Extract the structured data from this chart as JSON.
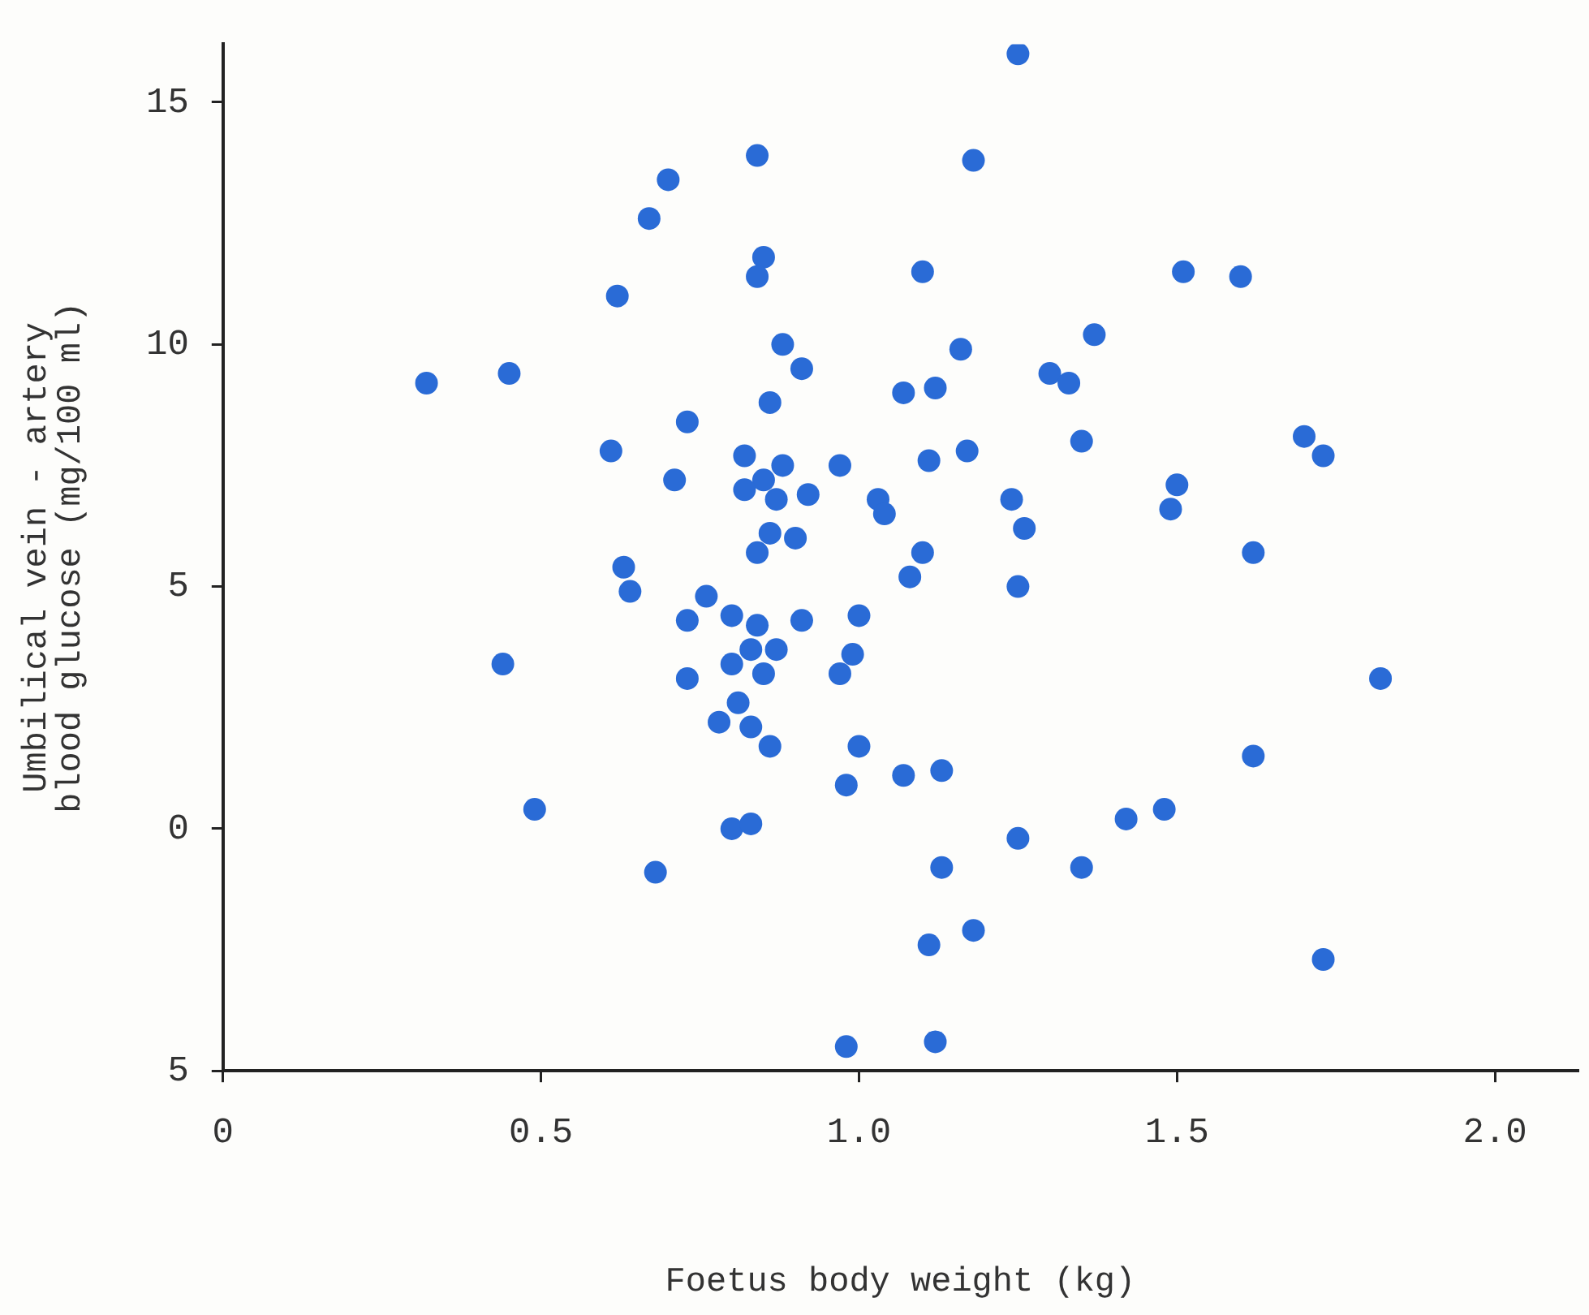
{
  "chart_data": {
    "type": "scatter",
    "xlabel": "Foetus body weight (kg)",
    "ylabel": "Umbilical vein - artery\nblood glucose (mg/100 ml)",
    "marker": "circle",
    "xlim": [
      0,
      2.13
    ],
    "ylim": [
      -5,
      16.2
    ],
    "xticks": [
      0,
      0.5,
      {
        "value": 1,
        "label": "1.0"
      },
      {
        "value": 1.5,
        "label": "1.5"
      },
      {
        "value": 2,
        "label": "2.0"
      }
    ],
    "yticks": [
      {
        "value": -5,
        "label": "5"
      },
      0,
      5,
      10,
      15
    ],
    "series": [
      {
        "color": "#2a6bd6",
        "x": [
          0.32,
          0.45,
          0.7,
          0.67,
          0.84,
          0.62,
          0.85,
          0.84,
          0.88,
          0.73,
          0.61,
          0.86,
          0.71,
          0.82,
          0.85,
          0.82,
          0.88,
          0.87,
          0.86,
          0.84,
          0.63,
          0.64,
          0.76,
          1.25,
          1.18,
          1.1,
          1.51,
          1.6,
          0.91,
          1.16,
          1.37,
          1.3,
          1.33,
          1.12,
          1.07,
          0.97,
          0.92,
          1.03,
          1.04,
          1.11,
          1.17,
          1.35,
          1.7,
          1.73,
          1.5,
          1.49,
          1.24,
          1.26,
          0.9,
          1.1,
          1.08,
          1.25,
          1.62,
          0.73,
          0.8,
          0.84,
          0.83,
          0.87,
          0.8,
          0.85,
          0.44,
          0.73,
          0.81,
          0.78,
          0.83,
          0.86,
          0.49,
          0.8,
          0.83,
          0.68,
          0.91,
          1.0,
          0.99,
          0.97,
          1.82,
          1.0,
          0.98,
          1.07,
          1.13,
          1.62,
          1.25,
          1.42,
          1.48,
          1.13,
          1.35,
          1.11,
          1.18,
          1.73,
          0.98,
          1.12
        ],
        "values": [
          9.2,
          9.4,
          13.4,
          12.6,
          13.9,
          11.0,
          11.8,
          11.4,
          10.0,
          8.4,
          7.8,
          8.8,
          7.2,
          7.7,
          7.2,
          7.0,
          7.5,
          6.8,
          6.1,
          5.7,
          5.4,
          4.9,
          4.8,
          16.0,
          13.8,
          11.5,
          11.5,
          11.4,
          9.5,
          9.9,
          10.2,
          9.4,
          9.2,
          9.1,
          9.0,
          7.5,
          6.9,
          6.8,
          6.5,
          7.6,
          7.8,
          8.0,
          8.1,
          7.7,
          7.1,
          6.6,
          6.8,
          6.2,
          6.0,
          5.7,
          5.2,
          5.0,
          5.7,
          4.3,
          4.4,
          4.2,
          3.7,
          3.7,
          3.4,
          3.2,
          3.4,
          3.1,
          2.6,
          2.2,
          2.1,
          1.7,
          0.4,
          0.0,
          0.1,
          -0.9,
          4.3,
          4.4,
          3.6,
          3.2,
          3.1,
          1.7,
          0.9,
          1.1,
          1.2,
          1.5,
          -0.2,
          0.2,
          0.4,
          -0.8,
          -0.8,
          -2.4,
          -2.1,
          -2.7,
          -4.5,
          -4.4
        ]
      }
    ]
  }
}
